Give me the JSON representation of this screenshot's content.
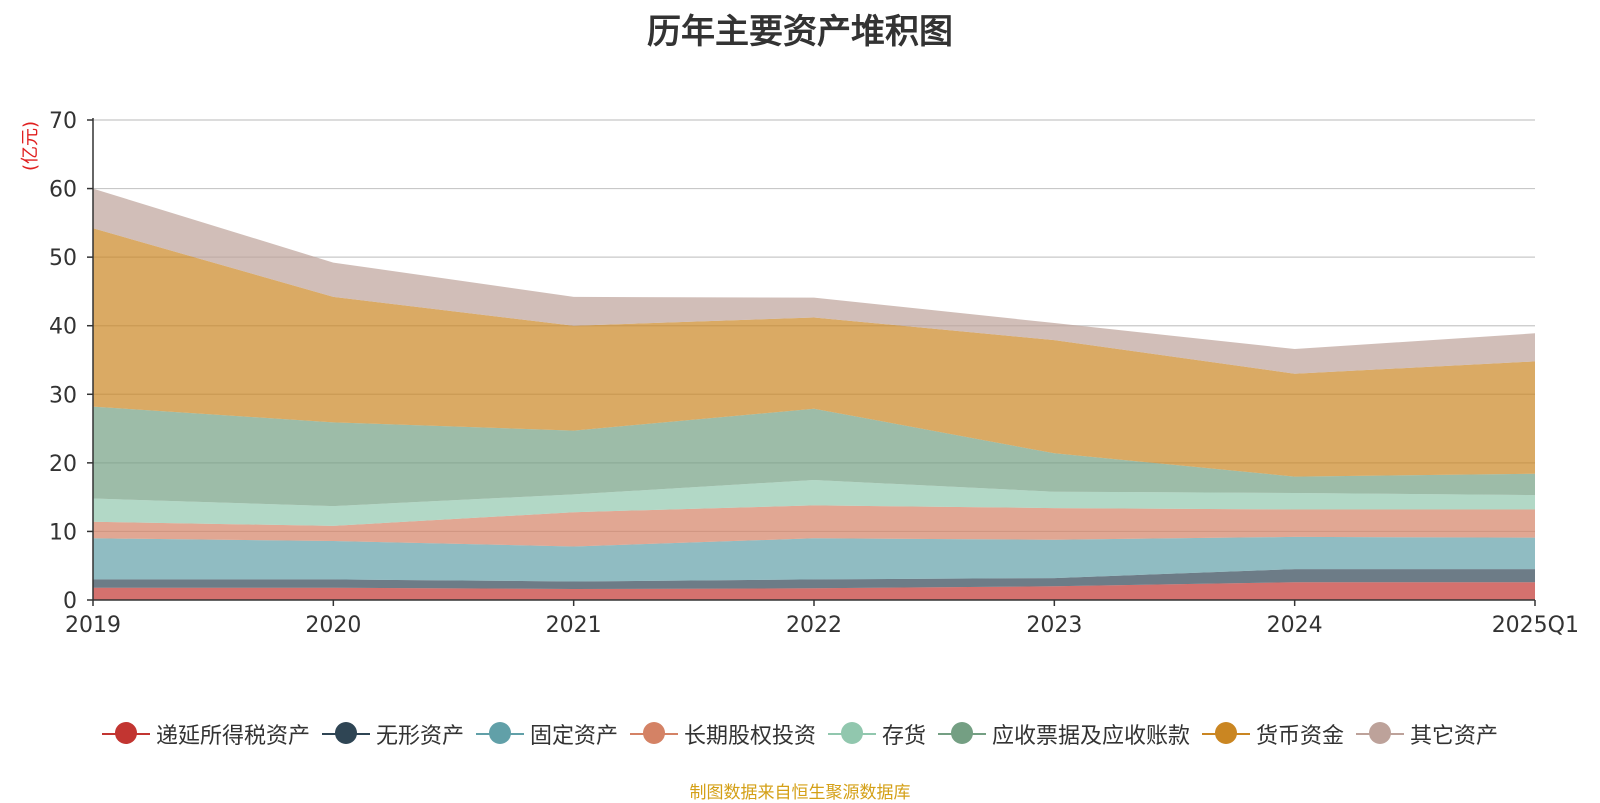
{
  "chart_data": {
    "type": "area",
    "stacked": true,
    "title": "历年主要资产堆积图",
    "ylabel": "(亿元)",
    "xlabel": "",
    "ylim": [
      0,
      70
    ],
    "yticks": [
      0,
      10,
      20,
      30,
      40,
      50,
      60,
      70
    ],
    "categories": [
      "2019",
      "2020",
      "2021",
      "2022",
      "2023",
      "2024",
      "2025Q1"
    ],
    "series": [
      {
        "name": "递延所得税资产",
        "color": "#c23531",
        "values": [
          1.8,
          1.8,
          1.6,
          1.7,
          2.0,
          2.6,
          2.6
        ]
      },
      {
        "name": "无形资产",
        "color": "#2f4554",
        "values": [
          1.2,
          1.2,
          1.1,
          1.3,
          1.2,
          1.9,
          1.9
        ]
      },
      {
        "name": "固定资产",
        "color": "#61a0a8",
        "values": [
          6.0,
          5.6,
          5.1,
          6.0,
          5.6,
          4.7,
          4.6
        ]
      },
      {
        "name": "长期股权投资",
        "color": "#d48265",
        "values": [
          2.4,
          2.2,
          5.0,
          4.8,
          4.6,
          4.0,
          4.1
        ]
      },
      {
        "name": "存货",
        "color": "#91c7ae",
        "values": [
          3.4,
          2.9,
          2.6,
          3.7,
          2.4,
          2.4,
          2.1
        ]
      },
      {
        "name": "应收票据及应收账款",
        "color": "#749f83",
        "values": [
          13.4,
          12.2,
          9.3,
          10.4,
          5.6,
          2.4,
          3.1
        ]
      },
      {
        "name": "货币资金",
        "color": "#ca8622",
        "values": [
          26.0,
          18.3,
          15.3,
          13.3,
          16.5,
          15.0,
          16.4
        ]
      },
      {
        "name": "其它资产",
        "color": "#bda29a",
        "values": [
          5.8,
          5.0,
          4.2,
          2.9,
          2.5,
          3.6,
          4.1
        ]
      }
    ]
  },
  "source_note": "制图数据来自恒生聚源数据库"
}
